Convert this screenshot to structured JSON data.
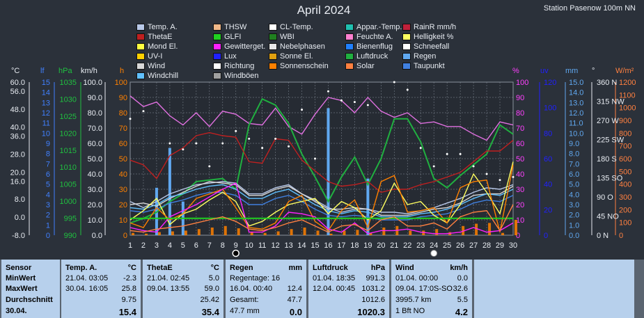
{
  "title": "April 2024",
  "station": "Station Pasenow  100m NN",
  "legend": [
    {
      "label": "Temp. A.",
      "color": "#b8c8e8"
    },
    {
      "label": "THSW",
      "color": "#f0b888"
    },
    {
      "label": "CL-Temp.",
      "color": "#ffffff"
    },
    {
      "label": "Appar.-Temp.",
      "color": "#20c0b0"
    },
    {
      "label": "RainR mm/h",
      "color": "#c0203a"
    },
    {
      "label": "ThetaE",
      "color": "#c02020"
    },
    {
      "label": "GLFI",
      "color": "#20d020"
    },
    {
      "label": "WBI",
      "color": "#208020"
    },
    {
      "label": "Feuchte A.",
      "color": "#ff80d0"
    },
    {
      "label": "Helligkeit %",
      "color": "#ffff60"
    },
    {
      "label": "Mond El.",
      "color": "#ffff40"
    },
    {
      "label": "Gewitterget.",
      "color": "#ff20ff"
    },
    {
      "label": "Nebelphasen",
      "color": "#e8e8e8"
    },
    {
      "label": "Bienenflug",
      "color": "#2080ff"
    },
    {
      "label": "Schneefall",
      "color": "#ffffff"
    },
    {
      "label": "UV-I",
      "color": "#ffd000"
    },
    {
      "label": "Lux",
      "color": "#2020ff"
    },
    {
      "label": "Sonne El.",
      "color": "#e0a010"
    },
    {
      "label": "Luftdruck",
      "color": "#20b040"
    },
    {
      "label": "Regen",
      "color": "#60a8f0"
    },
    {
      "label": "Wind",
      "color": "#d8d8d8"
    },
    {
      "label": "Richtung",
      "color": "#ffffff"
    },
    {
      "label": "Sonnenschein",
      "color": "#ff8000"
    },
    {
      "label": "Solar",
      "color": "#ff8040"
    },
    {
      "label": "Taupunkt",
      "color": "#4080e0"
    },
    {
      "label": "Windchill",
      "color": "#60c0ff"
    },
    {
      "label": "Windböen",
      "color": "#a0a0a0"
    }
  ],
  "axis_units": {
    "temp": "°C",
    "lf": "lf",
    "hpa": "hPa",
    "kmh": "km/h",
    "h": "h",
    "pct": "%",
    "uv": "uv",
    "mm": "mm",
    "deg": "°",
    "wm2": "W/m²"
  },
  "axis_ticks": {
    "temp": [
      "60.0",
      "56.0",
      "48.0",
      "40.0",
      "36.0",
      "28.0",
      "20.0",
      "16.0",
      "8.0",
      "0.0",
      "-8.0"
    ],
    "lf": [
      "15",
      "14",
      "13",
      "12",
      "11",
      "10",
      "9",
      "8",
      "7",
      "6",
      "5",
      "4",
      "3",
      "2",
      "1",
      "0"
    ],
    "hpa": [
      "1035",
      "1030",
      "1025",
      "1020",
      "1015",
      "1010",
      "1005",
      "1000",
      "995",
      "990"
    ],
    "kmh": [
      "100.0",
      "90.0",
      "80.0",
      "70.0",
      "60.0",
      "50.0",
      "40.0",
      "30.0",
      "20.0",
      "10.0",
      "0.0"
    ],
    "h": [
      "100",
      "90",
      "80",
      "70",
      "60",
      "50",
      "40",
      "30",
      "20",
      "10",
      "0"
    ],
    "pct": [
      "100",
      "90",
      "80",
      "70",
      "60",
      "50",
      "40",
      "30",
      "20",
      "10",
      "0"
    ],
    "uv": [
      "120",
      "100",
      "80",
      "60",
      "40",
      "20",
      "0"
    ],
    "mm": [
      "15.0",
      "14.0",
      "13.0",
      "12.0",
      "11.0",
      "10.0",
      "9.0",
      "8.0",
      "7.0",
      "6.0",
      "5.0",
      "4.0",
      "3.0",
      "2.0",
      "1.0",
      "0.0"
    ],
    "deg": [
      "360 N",
      "315 NW",
      "270 W",
      "225 SW",
      "180 S",
      "135 SO",
      "90 O",
      "45 NO",
      "0 N"
    ],
    "wm2": [
      "1200",
      "1100",
      "1000",
      "900",
      "800",
      "700",
      "600",
      "500",
      "400",
      "300",
      "200",
      "100",
      "0"
    ]
  },
  "chart_data": {
    "type": "line",
    "x": [
      1,
      2,
      3,
      4,
      5,
      6,
      7,
      8,
      9,
      10,
      11,
      12,
      13,
      14,
      15,
      16,
      17,
      18,
      19,
      20,
      21,
      22,
      23,
      24,
      25,
      26,
      27,
      28,
      29,
      30
    ],
    "ylim": [
      0,
      100
    ],
    "series": [
      {
        "name": "Feuchte A.",
        "color": "#e070e0",
        "values": [
          91,
          84,
          87,
          78,
          72,
          80,
          71,
          81,
          79,
          73,
          72,
          83,
          71,
          66,
          79,
          90,
          88,
          80,
          90,
          81,
          77,
          80,
          73,
          74,
          71,
          71,
          66,
          62,
          74,
          72
        ]
      },
      {
        "name": "Luftdruck",
        "color": "#20b040",
        "values": [
          8,
          11,
          15,
          22,
          27,
          35,
          36,
          37,
          30,
          72,
          89,
          85,
          73,
          53,
          38,
          22,
          38,
          51,
          33,
          50,
          76,
          76,
          61,
          37,
          31,
          39,
          46,
          53,
          72,
          66
        ]
      },
      {
        "name": "ThetaE",
        "color": "#c02020",
        "values": [
          49,
          46,
          37,
          52,
          57,
          65,
          67,
          65,
          64,
          48,
          47,
          63,
          62,
          49,
          42,
          35,
          32,
          33,
          35,
          28,
          30,
          30,
          33,
          35,
          38,
          41,
          48,
          55,
          55,
          62
        ]
      },
      {
        "name": "Temp. A.",
        "color": "#b8c8e8",
        "values": [
          22,
          18,
          22,
          27,
          30,
          33,
          34,
          35,
          34,
          27,
          27,
          31,
          33,
          27,
          23,
          18,
          15,
          17,
          17,
          15,
          15,
          14,
          16,
          18,
          21,
          24,
          28,
          31,
          30,
          33
        ]
      },
      {
        "name": "Wind",
        "color": "#d8d8d8",
        "values": [
          20,
          21,
          19,
          24,
          28,
          32,
          35,
          34,
          33,
          26,
          26,
          30,
          32,
          27,
          22,
          17,
          17,
          18,
          17,
          13,
          13,
          13,
          15,
          17,
          18,
          21,
          26,
          27,
          27,
          32
        ]
      },
      {
        "name": "Windchill",
        "color": "#60c0ff",
        "values": [
          18,
          17,
          20,
          25,
          27,
          30,
          32,
          33,
          30,
          24,
          24,
          28,
          30,
          25,
          20,
          16,
          14,
          16,
          15,
          12,
          12,
          12,
          14,
          15,
          17,
          20,
          24,
          27,
          26,
          30
        ]
      },
      {
        "name": "Taupunkt",
        "color": "#4080e0",
        "values": [
          16,
          15,
          17,
          21,
          23,
          26,
          28,
          28,
          26,
          20,
          20,
          24,
          26,
          22,
          17,
          13,
          12,
          13,
          12,
          10,
          10,
          10,
          12,
          13,
          14,
          17,
          21,
          23,
          22,
          26
        ]
      },
      {
        "name": "Helligkeit %",
        "color": "#ffff60",
        "values": [
          10,
          16,
          24,
          7,
          14,
          17,
          23,
          28,
          22,
          6,
          9,
          15,
          20,
          22,
          24,
          14,
          22,
          18,
          10,
          16,
          34,
          20,
          22,
          13,
          8,
          20,
          40,
          28,
          14,
          48
        ]
      },
      {
        "name": "Sonnenschein",
        "color": "#ff8000",
        "values": [
          8,
          5,
          18,
          10,
          14,
          24,
          27,
          30,
          18,
          5,
          4,
          8,
          22,
          26,
          9,
          3,
          16,
          23,
          5,
          35,
          39,
          15,
          16,
          18,
          8,
          31,
          35,
          36,
          2,
          46
        ]
      },
      {
        "name": "Gewitterget.",
        "color": "#ff20ff",
        "values": [
          5,
          3,
          2,
          12,
          16,
          20,
          25,
          30,
          34,
          2,
          2,
          6,
          15,
          14,
          12,
          4,
          2,
          8,
          1,
          3,
          3,
          4,
          2,
          1,
          1,
          2,
          5,
          2,
          3,
          8
        ]
      },
      {
        "name": "GLFI",
        "color": "#20d020",
        "values": [
          11,
          11,
          11,
          11,
          11,
          11,
          11,
          11,
          11,
          11,
          11,
          11,
          11,
          11,
          11,
          11,
          11,
          11,
          11,
          11,
          11,
          11,
          11,
          11,
          11,
          11,
          11,
          11,
          11,
          11
        ]
      },
      {
        "name": "Solar",
        "color": "#ff8040",
        "values": [
          3,
          2,
          4,
          5,
          6,
          8,
          10,
          12,
          9,
          4,
          3,
          5,
          8,
          10,
          6,
          2,
          6,
          7,
          3,
          10,
          12,
          6,
          6,
          8,
          4,
          12,
          15,
          16,
          3,
          20
        ]
      }
    ],
    "bars": {
      "name": "Regen",
      "color": "#60a8f0",
      "values": [
        0,
        0,
        31,
        57,
        22,
        0,
        0,
        0,
        0,
        0,
        0,
        0,
        0,
        0,
        0,
        83,
        0,
        0,
        37,
        0,
        0,
        0,
        0,
        0,
        0,
        0,
        0,
        0,
        0,
        0
      ]
    },
    "markers": {
      "name": "Richtung",
      "color": "#ffffff",
      "values": [
        76,
        81,
        null,
        60,
        56,
        60,
        45,
        60,
        68,
        63,
        57,
        63,
        58,
        82,
        50,
        94,
        88,
        87,
        85,
        101,
        100,
        95,
        57,
        45,
        53,
        53,
        45,
        40,
        36,
        38
      ]
    }
  },
  "moon_icons": [
    "new-moon",
    "full-moon"
  ],
  "stats": {
    "labels": {
      "header": "Sensor",
      "min": "MinWert",
      "max": "MaxWert",
      "avg": "Durchschnitt",
      "day": "30.04."
    },
    "temp": {
      "name": "Temp. A.",
      "unit": "°C",
      "min_t": "21.04.  03:05",
      "min": "-2.3",
      "max_t": "30.04.  16:05",
      "max": "25.8",
      "avg": "9.75",
      "day": "15.4"
    },
    "theta": {
      "name": "ThetaE",
      "unit": "°C",
      "min_t": "21.04.  02:45",
      "min": "5.0",
      "max_t": "09.04.  13:55",
      "max": "59.0",
      "avg": "25.42",
      "day": "35.4"
    },
    "regen": {
      "name": "Regen",
      "unit": "mm",
      "min_t": "Regentage: 16",
      "min": "",
      "max_t": "16.04.  00:40",
      "max": "12.4",
      "avg_l": "Gesamt:",
      "avg": "47.7",
      "day_l": "47.7 mm",
      "day": "0.0"
    },
    "druck": {
      "name": "Luftdruck",
      "unit": "hPa",
      "min_t": "01.04.  18:35",
      "min": "991.3",
      "max_t": "12.04.  00:45",
      "max": "1031.2",
      "avg": "1012.6",
      "day": "1020.3"
    },
    "wind": {
      "name": "Wind",
      "unit": "km/h",
      "min_t": "01.04.  00:00",
      "min": "0.0",
      "max_t": "09.04.  17:0S-SO",
      "max": "32.6",
      "avg_l": "3995.7 km",
      "avg": "5.5",
      "day_l": "1 Bft NO",
      "day": "4.2"
    }
  }
}
